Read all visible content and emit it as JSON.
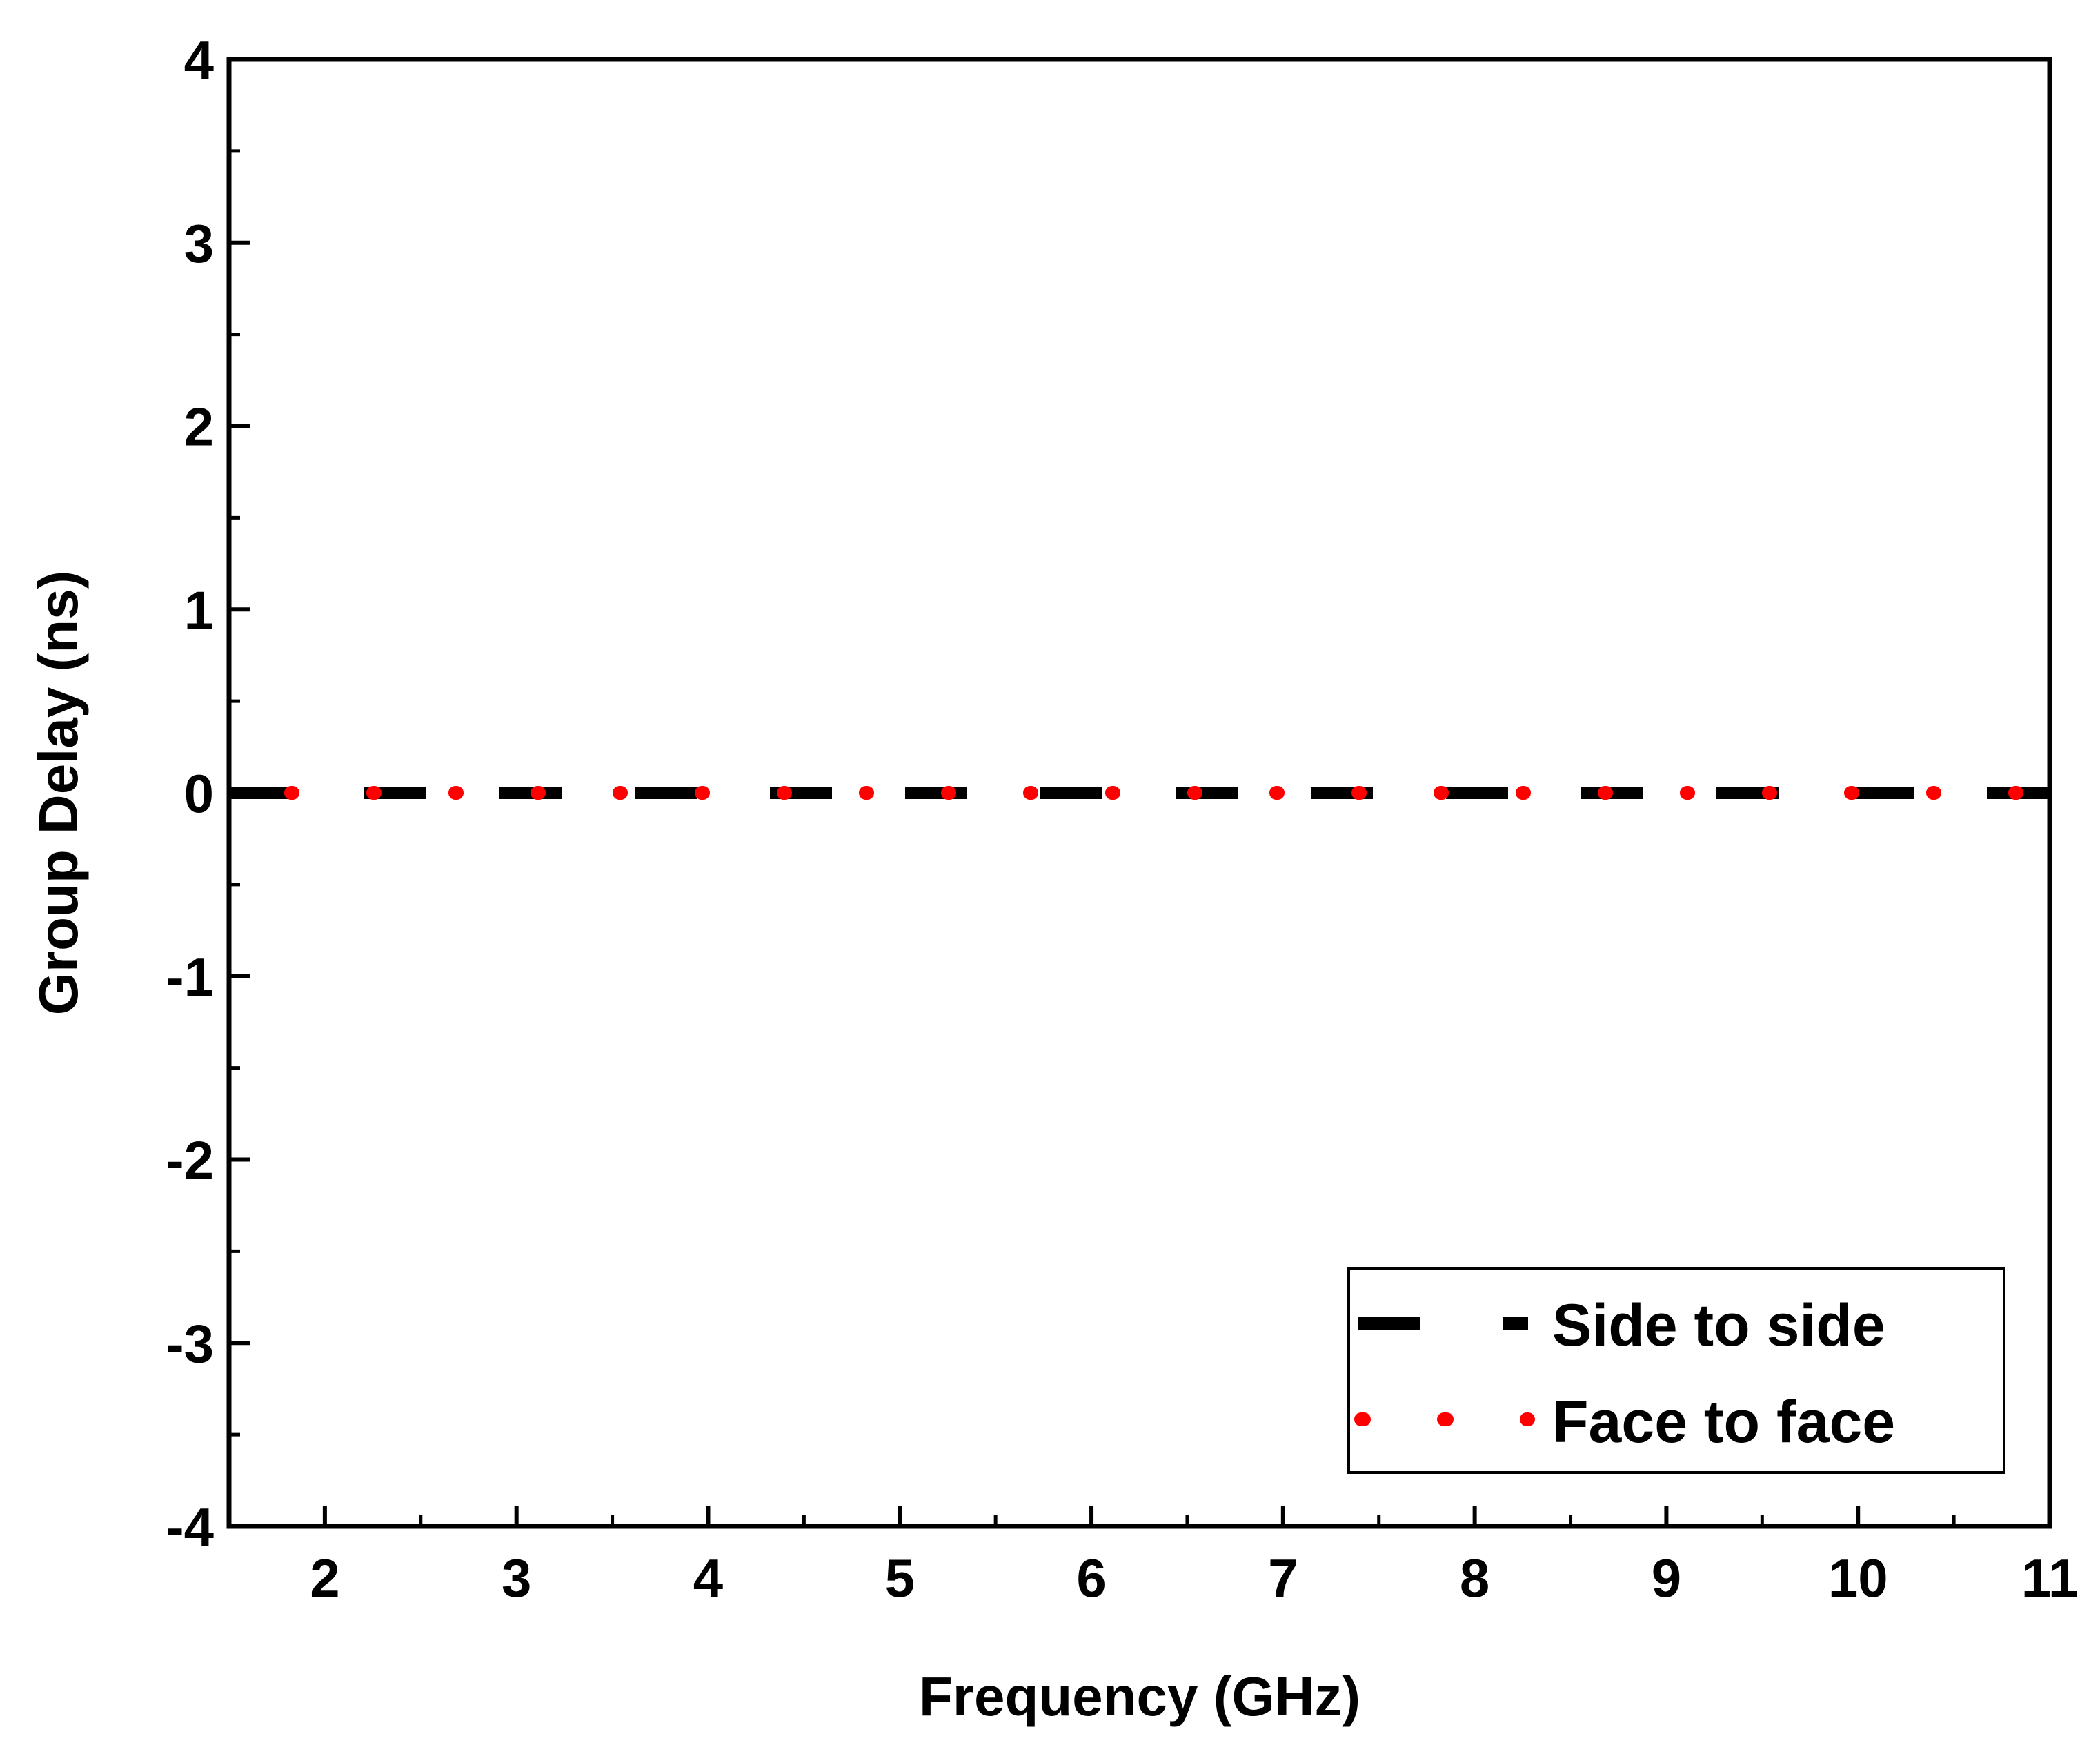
{
  "chart_data": {
    "type": "line",
    "title": "",
    "xlabel": "Frequency (GHz)",
    "ylabel": "Group Delay (ns)",
    "xlim": [
      1.5,
      11
    ],
    "ylim": [
      -4,
      4
    ],
    "xticks": [
      2,
      3,
      4,
      5,
      6,
      7,
      8,
      9,
      10,
      11
    ],
    "xtick_labels": [
      "2",
      "3",
      "4",
      "5",
      "6",
      "7",
      "8",
      "9",
      "10",
      "11"
    ],
    "yticks": [
      -4,
      -3,
      -2,
      -1,
      0,
      1,
      2,
      3,
      4
    ],
    "ytick_labels": [
      "-4",
      "-3",
      "-2",
      "-1",
      "0",
      "1",
      "2",
      "3",
      "4"
    ],
    "grid": false,
    "legend_position": "bottom-right",
    "series": [
      {
        "name": "Side to side",
        "color": "#000000",
        "style": "dash",
        "x": [
          1.5,
          11
        ],
        "y": [
          0,
          0
        ]
      },
      {
        "name": "Face to face",
        "color": "#ff0000",
        "style": "dot",
        "x": [
          1.5,
          11
        ],
        "y": [
          0,
          0
        ]
      }
    ]
  }
}
